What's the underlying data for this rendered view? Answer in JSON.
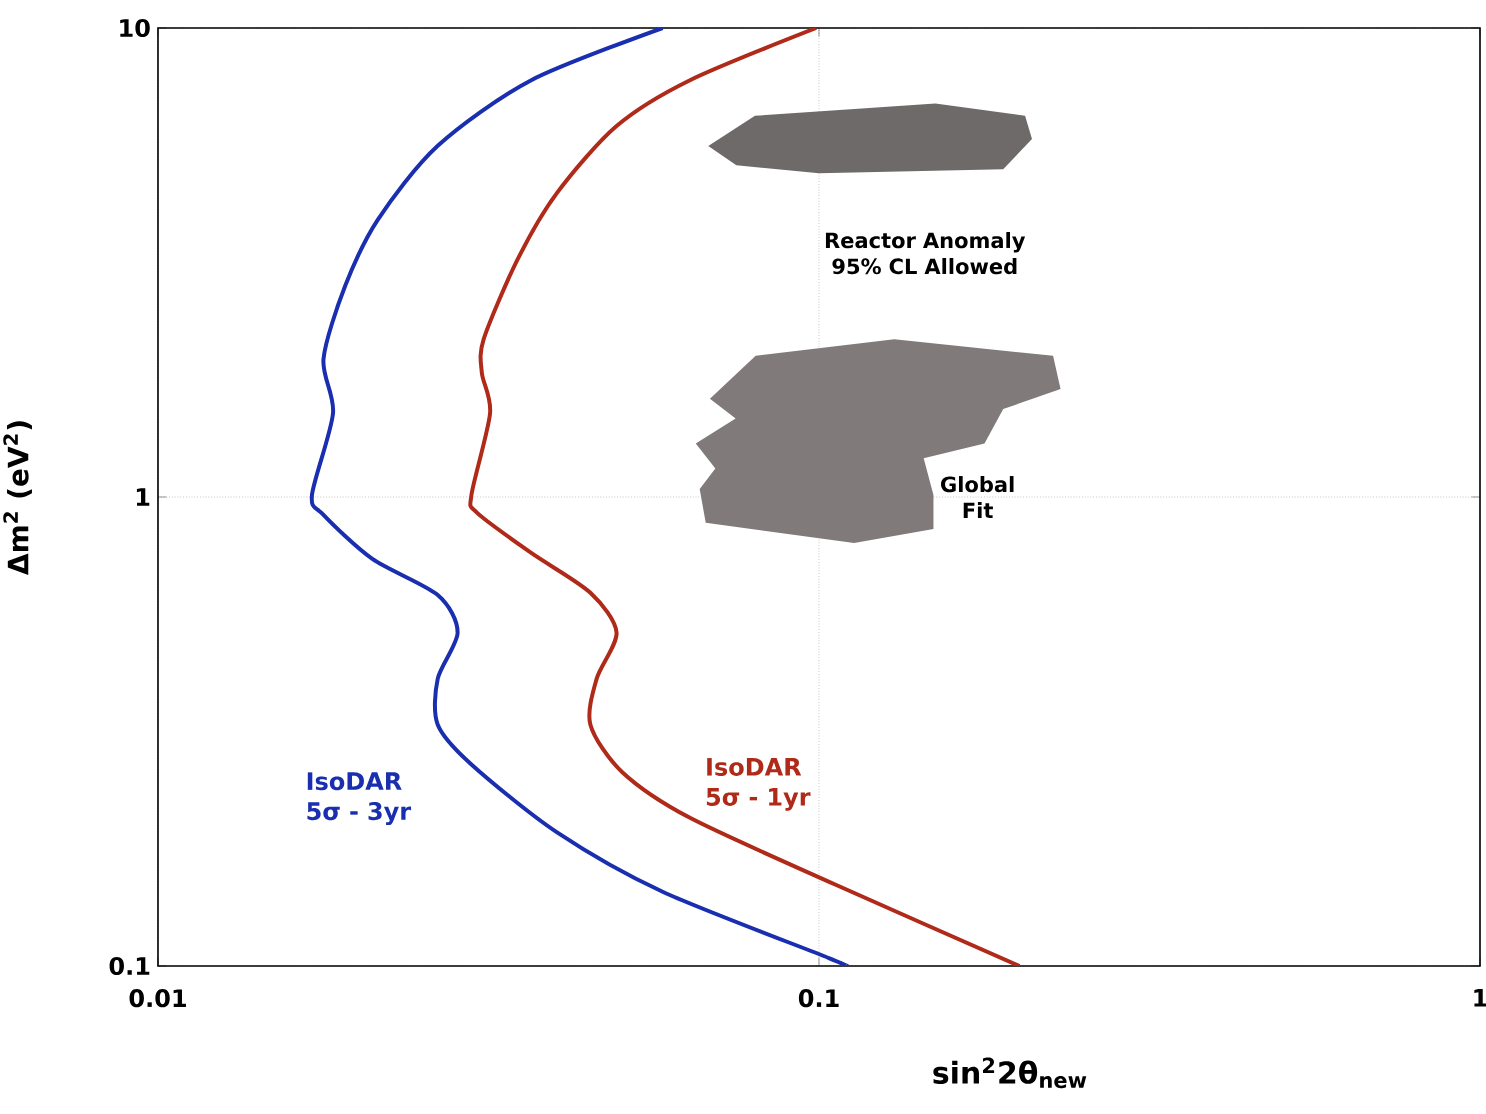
{
  "chart_data": {
    "type": "line",
    "xlabel": "sin$^{2}$2θ$_{new}$",
    "ylabel": "Δm$^{2}$ (eV$^{2}$)",
    "log": "xy",
    "grid": true,
    "xlim": [
      0.01,
      1
    ],
    "ylim": [
      0.1,
      10
    ],
    "xticks": [
      0.01,
      0.1,
      1
    ],
    "yticks": [
      0.1,
      1,
      10
    ],
    "series": [
      {
        "name": "IsoDAR 5σ - 3yr",
        "color": "#1a2fb0",
        "x": [
          0.058,
          0.0367,
          0.0265,
          0.0215,
          0.0192,
          0.0178,
          0.0184,
          0.0171,
          0.0178,
          0.0211,
          0.0265,
          0.0284,
          0.0265,
          0.0265,
          0.0298,
          0.0401,
          0.058,
          0.1035,
          0.11
        ],
        "values": [
          10,
          7.74,
          5.61,
          3.9,
          2.82,
          1.97,
          1.51,
          1.01,
          0.916,
          0.738,
          0.618,
          0.514,
          0.41,
          0.327,
          0.269,
          0.193,
          0.144,
          0.104,
          0.1
        ]
      },
      {
        "name": "IsoDAR 5σ - 1yr",
        "color": "#b02a1a",
        "x": [
          0.099,
          0.0638,
          0.0494,
          0.0401,
          0.035,
          0.0311,
          0.0309,
          0.0318,
          0.0298,
          0.0304,
          0.0367,
          0.0451,
          0.0494,
          0.0461,
          0.0451,
          0.0504,
          0.0638,
          0.106,
          0.201
        ],
        "values": [
          10,
          7.74,
          6.18,
          4.44,
          3.21,
          2.17,
          1.84,
          1.51,
          1.01,
          0.925,
          0.76,
          0.625,
          0.514,
          0.41,
          0.327,
          0.259,
          0.207,
          0.149,
          0.1
        ]
      },
      {
        "type": "area",
        "color": "#6e6a6a",
        "x": [
          0.068,
          0.08,
          0.15,
          0.205,
          0.21,
          0.19,
          0.1,
          0.075
        ],
        "values": [
          5.6,
          6.5,
          6.9,
          6.5,
          5.8,
          5.0,
          4.9,
          5.1
        ]
      },
      {
        "type": "area",
        "color": "#807a7a",
        "x": [
          0.0684,
          0.0802,
          0.13,
          0.226,
          0.232,
          0.19,
          0.178,
          0.144,
          0.149,
          0.149,
          0.113,
          0.0674,
          0.066,
          0.0697,
          0.0651,
          0.0748
        ],
        "values": [
          1.62,
          2.0,
          2.17,
          2.0,
          1.7,
          1.54,
          1.3,
          1.21,
          1.01,
          0.855,
          0.798,
          0.881,
          1.04,
          1.15,
          1.3,
          1.47
        ]
      }
    ],
    "annotations": [
      "Reactor Anomaly 95% CL Allowed",
      "Global Fit"
    ]
  }
}
